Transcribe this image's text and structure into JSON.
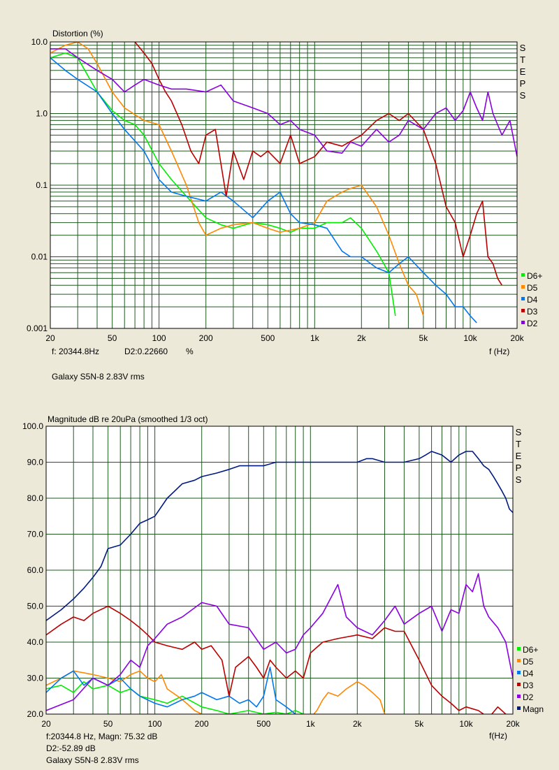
{
  "chart_data": [
    {
      "type": "line",
      "title": "Distortion (%)",
      "xlabel": "f (Hz)",
      "y_scale": "log",
      "x_scale": "log",
      "xlim": [
        20,
        20000
      ],
      "ylim": [
        0.001,
        10
      ],
      "x_ticks": [
        "20",
        "50",
        "100",
        "200",
        "500",
        "1k",
        "2k",
        "5k",
        "10k",
        "20k"
      ],
      "x_tick_values": [
        20,
        50,
        100,
        200,
        500,
        1000,
        2000,
        5000,
        10000,
        20000
      ],
      "y_ticks": [
        "10.0",
        "1.0",
        "0.1",
        "0.01",
        "0.001"
      ],
      "y_tick_values": [
        10,
        1,
        0.1,
        0.01,
        0.001
      ],
      "side_label": [
        "S",
        "T",
        "E",
        "P",
        "S"
      ],
      "grid": true,
      "legend_position": "bottom-right",
      "readout": {
        "freq": "f: 20344.8Hz",
        "value": "D2:0.22660",
        "unit": "%"
      },
      "caption": "Galaxy S5N-8 2.83V rms",
      "series": [
        {
          "name": "D6+",
          "color": "#00ee00",
          "x": [
            20,
            25,
            30,
            40,
            50,
            60,
            70,
            80,
            100,
            120,
            150,
            200,
            250,
            300,
            400,
            500,
            600,
            700,
            800,
            1000,
            1200,
            1500,
            1700,
            2000,
            2500,
            3000,
            3300
          ],
          "y": [
            6,
            7,
            6,
            2,
            1.1,
            0.8,
            0.7,
            0.5,
            0.2,
            0.12,
            0.07,
            0.035,
            0.028,
            0.025,
            0.03,
            0.028,
            0.025,
            0.022,
            0.025,
            0.025,
            0.03,
            0.03,
            0.035,
            0.025,
            0.012,
            0.006,
            0.0015
          ]
        },
        {
          "name": "D5",
          "color": "#ff8800",
          "x": [
            20,
            25,
            30,
            35,
            40,
            50,
            60,
            80,
            100,
            120,
            150,
            180,
            200,
            250,
            300,
            400,
            500,
            600,
            800,
            1000,
            1200,
            1500,
            1700,
            2000,
            2500,
            3000,
            3500,
            4000,
            4500,
            5000
          ],
          "y": [
            7,
            9,
            10,
            8,
            5,
            2,
            1.2,
            0.8,
            0.7,
            0.3,
            0.1,
            0.03,
            0.02,
            0.025,
            0.028,
            0.03,
            0.025,
            0.022,
            0.025,
            0.03,
            0.06,
            0.08,
            0.09,
            0.1,
            0.05,
            0.02,
            0.008,
            0.004,
            0.003,
            0.0015
          ]
        },
        {
          "name": "D4",
          "color": "#0077ee",
          "x": [
            20,
            25,
            30,
            40,
            50,
            60,
            80,
            100,
            120,
            150,
            200,
            250,
            300,
            400,
            500,
            600,
            700,
            800,
            1000,
            1200,
            1500,
            1700,
            2000,
            2500,
            3000,
            3500,
            4000,
            5000,
            6000,
            7000,
            8000,
            9000,
            10000,
            11000
          ],
          "y": [
            6,
            4,
            3,
            2,
            1.0,
            0.6,
            0.3,
            0.12,
            0.08,
            0.07,
            0.06,
            0.08,
            0.06,
            0.035,
            0.06,
            0.08,
            0.04,
            0.03,
            0.028,
            0.025,
            0.012,
            0.01,
            0.01,
            0.007,
            0.006,
            0.008,
            0.01,
            0.006,
            0.004,
            0.003,
            0.002,
            0.002,
            0.0015,
            0.0012
          ]
        },
        {
          "name": "D3",
          "color": "#bb0000",
          "x": [
            70,
            80,
            90,
            100,
            110,
            120,
            140,
            160,
            180,
            200,
            230,
            270,
            300,
            350,
            400,
            450,
            500,
            600,
            700,
            800,
            1000,
            1200,
            1500,
            2000,
            2500,
            3000,
            3500,
            4000,
            5000,
            6000,
            7000,
            8000,
            9000,
            10000,
            11000,
            12000,
            13000,
            14000,
            15000,
            16000
          ],
          "y": [
            10,
            7,
            5,
            3,
            2,
            1.5,
            0.7,
            0.3,
            0.2,
            0.5,
            0.6,
            0.07,
            0.3,
            0.12,
            0.3,
            0.25,
            0.3,
            0.2,
            0.5,
            0.2,
            0.25,
            0.4,
            0.35,
            0.5,
            0.8,
            1.0,
            0.8,
            1.0,
            0.6,
            0.2,
            0.05,
            0.03,
            0.01,
            0.02,
            0.04,
            0.06,
            0.01,
            0.008,
            0.005,
            0.004
          ]
        },
        {
          "name": "D2",
          "color": "#8a00e0",
          "x": [
            20,
            25,
            30,
            40,
            50,
            60,
            70,
            80,
            100,
            120,
            150,
            200,
            250,
            300,
            400,
            500,
            600,
            700,
            800,
            1000,
            1200,
            1500,
            1700,
            2000,
            2500,
            3000,
            3500,
            4000,
            5000,
            6000,
            7000,
            8000,
            9000,
            10000,
            11000,
            12000,
            13000,
            14000,
            16000,
            18000,
            20000
          ],
          "y": [
            8,
            8,
            6,
            4,
            3,
            2,
            2.5,
            3,
            2.5,
            2.2,
            2.2,
            2.0,
            2.5,
            1.5,
            1.2,
            1.0,
            0.7,
            0.8,
            0.6,
            0.5,
            0.3,
            0.28,
            0.4,
            0.35,
            0.6,
            0.4,
            0.5,
            0.8,
            0.6,
            1.0,
            1.2,
            0.8,
            1.1,
            2.0,
            1.2,
            0.8,
            2.0,
            1.0,
            0.5,
            0.8,
            0.25
          ]
        }
      ]
    },
    {
      "type": "line",
      "title": "Magnitude dB re 20uPa (smoothed  1/3 oct)",
      "xlabel": "f(Hz)",
      "x_scale": "log",
      "xlim": [
        20,
        20000
      ],
      "ylim": [
        20,
        100
      ],
      "x_ticks": [
        "20",
        "50",
        "100",
        "200",
        "500",
        "1k",
        "2k",
        "5k",
        "10k",
        "20k"
      ],
      "x_tick_values": [
        20,
        50,
        100,
        200,
        500,
        1000,
        2000,
        5000,
        10000,
        20000
      ],
      "y_ticks": [
        "100.0",
        "90.0",
        "80.0",
        "70.0",
        "60.0",
        "50.0",
        "40.0",
        "30.0",
        "20.0"
      ],
      "y_tick_values": [
        100,
        90,
        80,
        70,
        60,
        50,
        40,
        30,
        20
      ],
      "side_label": [
        "S",
        "T",
        "E",
        "P",
        "S"
      ],
      "grid": true,
      "legend_position": "bottom-right",
      "readout": [
        "f:20344.8 Hz, Magn: 75.32 dB",
        "D2:-52.89 dB",
        "Galaxy S5N-8 2.83V rms"
      ],
      "series": [
        {
          "name": "D6+",
          "color": "#00ee00",
          "x": [
            20,
            25,
            30,
            35,
            40,
            50,
            60,
            70,
            80,
            100,
            120,
            150,
            200,
            250,
            300,
            400,
            500,
            600,
            700,
            800,
            900
          ],
          "y": [
            27,
            28,
            26,
            29,
            27,
            28,
            26,
            27,
            25,
            24,
            23,
            25,
            22,
            21,
            20,
            21,
            20,
            20.5,
            20,
            21,
            20
          ]
        },
        {
          "name": "D5",
          "color": "#ff8800",
          "x": [
            20,
            25,
            30,
            40,
            50,
            60,
            70,
            80,
            90,
            100,
            110,
            120,
            140,
            160,
            180,
            200,
            220,
            1000,
            1100,
            1200,
            1300,
            1500,
            1700,
            2000,
            2200,
            2500,
            2800,
            3000
          ],
          "y": [
            28,
            30,
            32,
            31,
            30,
            29,
            31,
            32,
            30,
            29,
            31,
            27,
            25,
            23,
            21,
            20,
            19,
            19,
            21,
            24,
            26,
            25,
            27,
            29,
            28,
            26,
            24,
            20
          ]
        },
        {
          "name": "D4",
          "color": "#0077ee",
          "x": [
            20,
            25,
            30,
            35,
            40,
            50,
            60,
            70,
            80,
            100,
            120,
            150,
            180,
            200,
            250,
            300,
            350,
            400,
            450,
            500,
            550,
            600,
            700,
            800
          ],
          "y": [
            26,
            30,
            32,
            28,
            30,
            28,
            30,
            27,
            25,
            23,
            22,
            24,
            25,
            26,
            24,
            25,
            23,
            24,
            22,
            25,
            33,
            24,
            22,
            20
          ]
        },
        {
          "name": "D3",
          "color": "#bb0000",
          "x": [
            20,
            25,
            30,
            35,
            40,
            50,
            60,
            70,
            80,
            90,
            100,
            120,
            150,
            180,
            200,
            230,
            270,
            300,
            330,
            400,
            450,
            500,
            550,
            600,
            700,
            800,
            900,
            1000,
            1200,
            1500,
            2000,
            2500,
            3000,
            3500,
            4000,
            5000,
            6000,
            7000,
            8000,
            9000,
            10000,
            12000,
            14000,
            16000,
            18000,
            20000
          ],
          "y": [
            42,
            45,
            47,
            46,
            48,
            50,
            48,
            46,
            44,
            42,
            40,
            39,
            38,
            40,
            38,
            39,
            35,
            25,
            33,
            36,
            33,
            30,
            35,
            33,
            30,
            32,
            30,
            37,
            40,
            41,
            42,
            41,
            44,
            43,
            43,
            35,
            28,
            25,
            23,
            21,
            22,
            21,
            19,
            22,
            20,
            19
          ]
        },
        {
          "name": "D2",
          "color": "#8a00e0",
          "x": [
            20,
            30,
            40,
            50,
            60,
            70,
            80,
            90,
            100,
            120,
            150,
            200,
            250,
            300,
            400,
            500,
            600,
            700,
            800,
            900,
            1000,
            1200,
            1500,
            1700,
            2000,
            2500,
            3000,
            3500,
            4000,
            5000,
            6000,
            7000,
            8000,
            9000,
            10000,
            11000,
            12000,
            13000,
            14000,
            16000,
            18000,
            20000
          ],
          "y": [
            21,
            24,
            30,
            28,
            31,
            35,
            33,
            39,
            41,
            45,
            47,
            51,
            50,
            45,
            44,
            38,
            40,
            37,
            38,
            42,
            44,
            48,
            56,
            47,
            44,
            42,
            46,
            50,
            45,
            48,
            50,
            43,
            49,
            48,
            56,
            54,
            59,
            50,
            47,
            44,
            40,
            30
          ]
        },
        {
          "name": "Magn",
          "color": "#001a80",
          "x": [
            20,
            25,
            30,
            35,
            40,
            45,
            50,
            60,
            70,
            80,
            90,
            100,
            120,
            150,
            180,
            200,
            250,
            300,
            350,
            400,
            500,
            600,
            700,
            800,
            1000,
            1200,
            1500,
            1700,
            2000,
            2300,
            2500,
            3000,
            3500,
            4000,
            5000,
            5500,
            6000,
            7000,
            8000,
            9000,
            10000,
            11000,
            12000,
            13000,
            14000,
            15000,
            16000,
            17000,
            18000,
            19000,
            20000
          ],
          "y": [
            46,
            49,
            52,
            55,
            58,
            61,
            66,
            67,
            70,
            73,
            74,
            75,
            80,
            84,
            85,
            86,
            87,
            88,
            89,
            89,
            89,
            90,
            90,
            90,
            90,
            90,
            90,
            90,
            90,
            91,
            91,
            90,
            90,
            90,
            91,
            92,
            93,
            92,
            90,
            92,
            93,
            93,
            91,
            89,
            88,
            86,
            84,
            82,
            80,
            77,
            76
          ]
        }
      ]
    }
  ]
}
